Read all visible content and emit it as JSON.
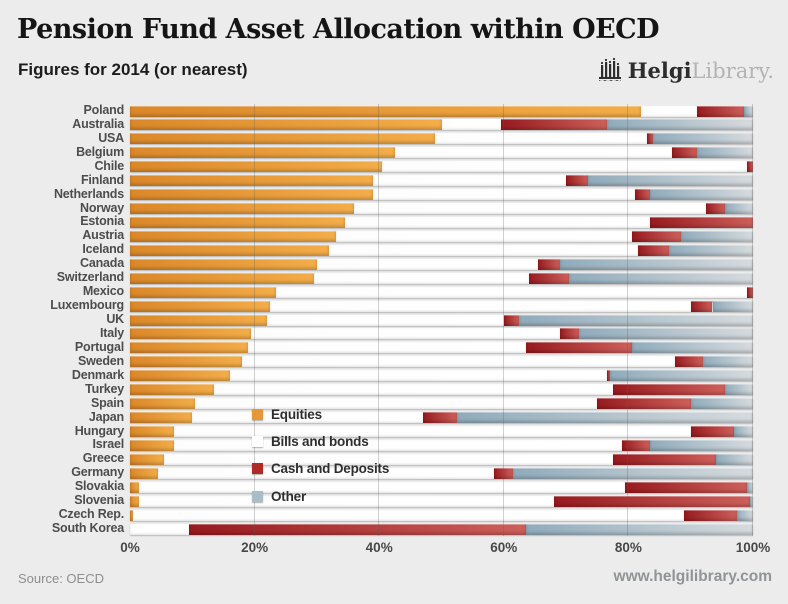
{
  "header": {
    "title": "Pension Fund Asset Allocation within OECD",
    "subtitle": "Figures for 2014 (or nearest)",
    "logo": {
      "brand_bold": "Helgi",
      "brand_light": "Library.",
      "icon": "building-columns-icon"
    }
  },
  "footer": {
    "source": "Source: OECD",
    "website": "www.helgilibrary.com"
  },
  "colors": {
    "background": "#ececec",
    "equities": "#e8963a",
    "bills_and_bonds": "#ffffff",
    "cash_and_deposits": "#b02a26",
    "other": "#a7bdc8",
    "track": "#cbcfd2"
  },
  "chart_data": {
    "type": "bar",
    "orientation": "horizontal-stacked",
    "unit": "%",
    "xlim": [
      0,
      100
    ],
    "x_ticks": [
      "0%",
      "20%",
      "40%",
      "60%",
      "80%",
      "100%"
    ],
    "grid": true,
    "legend_position": "inside-bottom-left",
    "categories": [
      "Poland",
      "Australia",
      "USA",
      "Belgium",
      "Chile",
      "Finland",
      "Netherlands",
      "Norway",
      "Estonia",
      "Austria",
      "Iceland",
      "Canada",
      "Switzerland",
      "Mexico",
      "Luxembourg",
      "UK",
      "Italy",
      "Portugal",
      "Sweden",
      "Denmark",
      "Turkey",
      "Spain",
      "Japan",
      "Hungary",
      "Israel",
      "Greece",
      "Germany",
      "Slovakia",
      "Slovenia",
      "Czech Rep.",
      "South Korea"
    ],
    "series": [
      {
        "name": "Equities",
        "color": "#e8963a",
        "values": [
          82,
          50,
          49,
          42.5,
          40.5,
          39,
          39,
          36,
          34.5,
          33,
          32,
          30,
          29.5,
          23.5,
          22.5,
          22,
          19.5,
          19,
          18,
          16,
          13.5,
          10.5,
          10,
          7,
          7,
          5.5,
          4.5,
          1.5,
          1.5,
          0.5,
          0
        ]
      },
      {
        "name": "Bills and bonds",
        "color": "#ffffff",
        "values": [
          9,
          9.5,
          34,
          44.5,
          58.5,
          31,
          42,
          56.5,
          49,
          47.5,
          49.5,
          35.5,
          34.5,
          75.5,
          67.5,
          38,
          49.5,
          44.5,
          69.5,
          60.5,
          64,
          64.5,
          37,
          83,
          72,
          72,
          54,
          78,
          66.5,
          88.5,
          9.5
        ]
      },
      {
        "name": "Cash and Deposits",
        "color": "#b02a26",
        "values": [
          7.5,
          17,
          1,
          4,
          1,
          3.5,
          2.5,
          3,
          16.5,
          8,
          5,
          3.5,
          6.5,
          1,
          3.5,
          2.5,
          3,
          17,
          4.5,
          0.5,
          18,
          15,
          5.5,
          7,
          4.5,
          16.5,
          3,
          19.5,
          31.5,
          8.5,
          54
        ]
      },
      {
        "name": "Other",
        "color": "#a7bdc8",
        "values": [
          1.5,
          23.5,
          16,
          9,
          0,
          26.5,
          16.5,
          4.5,
          0,
          11.5,
          13.5,
          31,
          29.5,
          0,
          6.5,
          37.5,
          28,
          19.5,
          8,
          23,
          4.5,
          10,
          47.5,
          3,
          16.5,
          6,
          38.5,
          1,
          0.5,
          2.5,
          36.5
        ]
      }
    ]
  }
}
